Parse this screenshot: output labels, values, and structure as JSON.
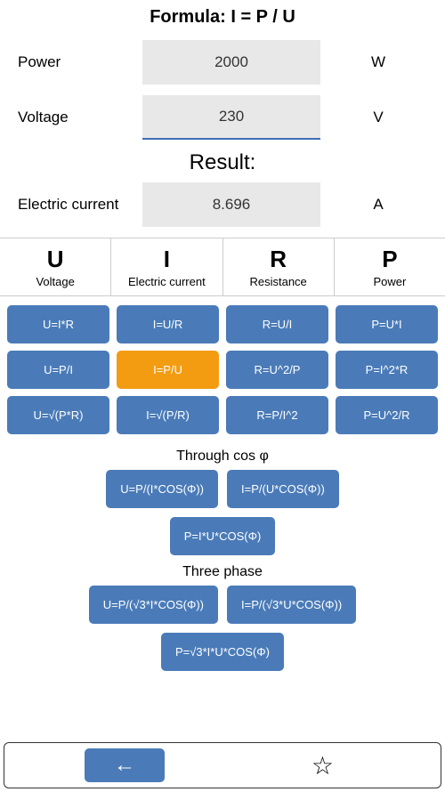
{
  "colors": {
    "button_bg": "#4a7bb8",
    "button_selected": "#f39c12",
    "input_bg": "#e8e8e8",
    "underline": "#3f6fb5",
    "text": "#000000",
    "button_text": "#ffffff"
  },
  "formula_title": "Formula: I = P / U",
  "inputs": {
    "power": {
      "label": "Power",
      "value": "2000",
      "unit": "W"
    },
    "voltage": {
      "label": "Voltage",
      "value": "230",
      "unit": "V"
    }
  },
  "result_header": "Result:",
  "result": {
    "label": "Electric current",
    "value": "8.696",
    "unit": "A"
  },
  "columns": [
    {
      "symbol": "U",
      "name": "Voltage"
    },
    {
      "symbol": "I",
      "name": "Electric current"
    },
    {
      "symbol": "R",
      "name": "Resistance"
    },
    {
      "symbol": "P",
      "name": "Power"
    }
  ],
  "grid": [
    [
      "U=I*R",
      "I=U/R",
      "R=U/I",
      "P=U*I"
    ],
    [
      "U=P/I",
      "I=P/U",
      "R=U^2/P",
      "P=I^2*R"
    ],
    [
      "U=√(P*R)",
      "I=√(P/R)",
      "R=P/I^2",
      "P=U^2/R"
    ]
  ],
  "selected": "I=P/U",
  "cos_section": {
    "title": "Through cos φ",
    "row1": [
      "U=P/(I*COS(Φ))",
      "I=P/(U*COS(Φ))"
    ],
    "row2": [
      "P=I*U*COS(Φ)"
    ]
  },
  "three_phase": {
    "title": "Three phase",
    "row1": [
      "U=P/(√3*I*COS(Φ))",
      "I=P/(√3*U*COS(Φ))"
    ],
    "row2": [
      "P=√3*I*U*COS(Φ)"
    ]
  },
  "nav": {
    "back": "←",
    "star": "☆"
  }
}
